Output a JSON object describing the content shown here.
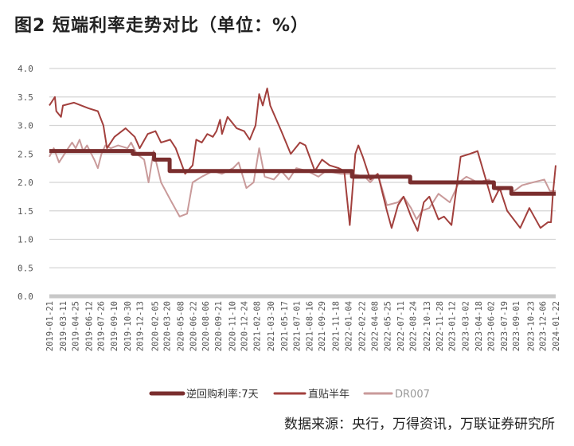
{
  "title": "图2  短端利率走势对比（单位：%）",
  "source": "数据来源：央行，万得资讯，万联证券研究所",
  "chart_data": {
    "type": "line",
    "title": "图2  短端利率走势对比（单位：%）",
    "ylabel": "",
    "xlabel": "",
    "ylim": [
      0,
      4
    ],
    "xlim": [
      "2019-01-21",
      "2024-01-22"
    ],
    "yticks": [
      "0.0",
      "0.5",
      "1.0",
      "1.5",
      "2.0",
      "2.5",
      "3.0",
      "3.5",
      "4.0"
    ],
    "grid": true,
    "legend": "bottom",
    "xticks": [
      "2019-01-21",
      "2019-03-11",
      "2019-04-25",
      "2019-06-12",
      "2019-07-26",
      "2019-09-10",
      "2019-10-30",
      "2019-12-13",
      "2020-02-05",
      "2020-03-20",
      "2020-05-08",
      "2020-06-22",
      "2020-08-06",
      "2020-09-21",
      "2020-11-10",
      "2020-12-24",
      "2021-02-08",
      "2021-03-30",
      "2021-05-17",
      "2021-07-01",
      "2021-08-16",
      "2021-09-29",
      "2021-11-18",
      "2022-01-04",
      "2022-02-22",
      "2022-04-08",
      "2022-05-25",
      "2022-07-11",
      "2022-08-24",
      "2022-10-13",
      "2022-11-28",
      "2023-01-12",
      "2023-03-02",
      "2023-04-18",
      "2023-06-02",
      "2023-07-19",
      "2023-09-01",
      "2023-10-23",
      "2023-12-06",
      "2024-01-22"
    ],
    "series": [
      {
        "name": "逆回购利率:7天",
        "color": "#7a2e2e",
        "step": true,
        "points": [
          [
            "2019-01-21",
            2.55
          ],
          [
            "2019-11-18",
            2.5
          ],
          [
            "2020-02-03",
            2.4
          ],
          [
            "2020-03-30",
            2.2
          ],
          [
            "2022-01-17",
            2.1
          ],
          [
            "2022-08-15",
            2.0
          ],
          [
            "2023-06-13",
            1.9
          ],
          [
            "2023-08-15",
            1.8
          ],
          [
            "2024-01-22",
            1.8
          ]
        ]
      },
      {
        "name": "直贴半年",
        "color": "#a2403d",
        "points": [
          [
            "2019-01-21",
            3.35
          ],
          [
            "2019-02-10",
            3.5
          ],
          [
            "2019-02-15",
            3.25
          ],
          [
            "2019-03-04",
            3.15
          ],
          [
            "2019-03-11",
            3.35
          ],
          [
            "2019-04-20",
            3.4
          ],
          [
            "2019-06-12",
            3.3
          ],
          [
            "2019-07-15",
            3.25
          ],
          [
            "2019-08-04",
            3.0
          ],
          [
            "2019-08-17",
            2.6
          ],
          [
            "2019-09-13",
            2.8
          ],
          [
            "2019-10-23",
            2.95
          ],
          [
            "2019-11-25",
            2.8
          ],
          [
            "2019-12-13",
            2.6
          ],
          [
            "2020-01-11",
            2.85
          ],
          [
            "2020-02-08",
            2.9
          ],
          [
            "2020-02-28",
            2.7
          ],
          [
            "2020-04-01",
            2.75
          ],
          [
            "2020-04-21",
            2.6
          ],
          [
            "2020-05-25",
            2.15
          ],
          [
            "2020-06-21",
            2.3
          ],
          [
            "2020-07-04",
            2.75
          ],
          [
            "2020-07-24",
            2.7
          ],
          [
            "2020-08-13",
            2.85
          ],
          [
            "2020-09-02",
            2.8
          ],
          [
            "2020-09-15",
            2.9
          ],
          [
            "2020-09-28",
            3.1
          ],
          [
            "2020-10-05",
            2.85
          ],
          [
            "2020-10-25",
            3.15
          ],
          [
            "2020-11-27",
            2.95
          ],
          [
            "2020-12-24",
            2.9
          ],
          [
            "2021-01-13",
            2.75
          ],
          [
            "2021-02-03",
            3.0
          ],
          [
            "2021-02-16",
            3.55
          ],
          [
            "2021-03-01",
            3.35
          ],
          [
            "2021-03-17",
            3.65
          ],
          [
            "2021-03-28",
            3.35
          ],
          [
            "2021-05-07",
            2.9
          ],
          [
            "2021-06-10",
            2.5
          ],
          [
            "2021-07-13",
            2.7
          ],
          [
            "2021-08-02",
            2.65
          ],
          [
            "2021-09-05",
            2.2
          ],
          [
            "2021-10-01",
            2.4
          ],
          [
            "2021-10-28",
            2.3
          ],
          [
            "2021-11-30",
            2.25
          ],
          [
            "2021-12-20",
            2.2
          ],
          [
            "2022-01-09",
            1.25
          ],
          [
            "2022-01-29",
            2.5
          ],
          [
            "2022-02-09",
            2.65
          ],
          [
            "2022-02-25",
            2.45
          ],
          [
            "2022-03-24",
            2.05
          ],
          [
            "2022-04-20",
            2.15
          ],
          [
            "2022-05-23",
            1.5
          ],
          [
            "2022-06-09",
            1.2
          ],
          [
            "2022-07-02",
            1.6
          ],
          [
            "2022-07-22",
            1.75
          ],
          [
            "2022-08-18",
            1.4
          ],
          [
            "2022-09-11",
            1.15
          ],
          [
            "2022-10-03",
            1.65
          ],
          [
            "2022-10-23",
            1.75
          ],
          [
            "2022-11-25",
            1.35
          ],
          [
            "2022-12-15",
            1.4
          ],
          [
            "2023-01-11",
            1.25
          ],
          [
            "2023-02-13",
            2.45
          ],
          [
            "2023-03-18",
            2.5
          ],
          [
            "2023-04-15",
            2.55
          ],
          [
            "2023-05-12",
            2.1
          ],
          [
            "2023-06-08",
            1.65
          ],
          [
            "2023-07-04",
            1.9
          ],
          [
            "2023-07-31",
            1.5
          ],
          [
            "2023-09-16",
            1.2
          ],
          [
            "2023-10-19",
            1.55
          ],
          [
            "2023-11-28",
            1.2
          ],
          [
            "2023-12-25",
            1.3
          ],
          [
            "2024-01-05",
            1.3
          ],
          [
            "2024-01-12",
            1.8
          ],
          [
            "2024-01-22",
            2.3
          ]
        ]
      },
      {
        "name": "DR007",
        "color": "#c99a9a",
        "points": [
          [
            "2019-01-21",
            2.45
          ],
          [
            "2019-02-06",
            2.6
          ],
          [
            "2019-02-25",
            2.35
          ],
          [
            "2019-03-30",
            2.6
          ],
          [
            "2019-04-13",
            2.7
          ],
          [
            "2019-04-26",
            2.6
          ],
          [
            "2019-05-10",
            2.75
          ],
          [
            "2019-05-23",
            2.55
          ],
          [
            "2019-06-06",
            2.65
          ],
          [
            "2019-07-02",
            2.4
          ],
          [
            "2019-07-15",
            2.25
          ],
          [
            "2019-07-28",
            2.5
          ],
          [
            "2019-08-11",
            2.65
          ],
          [
            "2019-08-31",
            2.6
          ],
          [
            "2019-09-26",
            2.65
          ],
          [
            "2019-10-30",
            2.6
          ],
          [
            "2019-11-12",
            2.7
          ],
          [
            "2019-12-02",
            2.5
          ],
          [
            "2019-12-29",
            2.4
          ],
          [
            "2020-01-14",
            2.0
          ],
          [
            "2020-02-01",
            2.55
          ],
          [
            "2020-02-28",
            2.0
          ],
          [
            "2020-04-01",
            1.7
          ],
          [
            "2020-05-05",
            1.4
          ],
          [
            "2020-06-01",
            1.45
          ],
          [
            "2020-06-21",
            2.0
          ],
          [
            "2020-07-24",
            2.1
          ],
          [
            "2020-09-02",
            2.2
          ],
          [
            "2020-10-05",
            2.15
          ],
          [
            "2020-11-14",
            2.25
          ],
          [
            "2020-12-04",
            2.35
          ],
          [
            "2021-01-01",
            1.9
          ],
          [
            "2021-01-27",
            2.0
          ],
          [
            "2021-02-16",
            2.6
          ],
          [
            "2021-03-08",
            2.1
          ],
          [
            "2021-04-10",
            2.05
          ],
          [
            "2021-05-07",
            2.2
          ],
          [
            "2021-06-03",
            2.05
          ],
          [
            "2021-06-30",
            2.25
          ],
          [
            "2021-08-09",
            2.2
          ],
          [
            "2021-09-18",
            2.1
          ],
          [
            "2021-10-15",
            2.2
          ],
          [
            "2021-12-07",
            2.15
          ],
          [
            "2022-01-16",
            2.15
          ],
          [
            "2022-03-04",
            2.1
          ],
          [
            "2022-03-24",
            2.0
          ],
          [
            "2022-04-20",
            2.15
          ],
          [
            "2022-05-23",
            1.6
          ],
          [
            "2022-07-02",
            1.65
          ],
          [
            "2022-07-22",
            1.75
          ],
          [
            "2022-08-18",
            1.55
          ],
          [
            "2022-09-07",
            1.35
          ],
          [
            "2022-09-27",
            1.5
          ],
          [
            "2022-10-23",
            1.55
          ],
          [
            "2022-11-25",
            1.8
          ],
          [
            "2023-01-05",
            1.65
          ],
          [
            "2023-02-07",
            2.0
          ],
          [
            "2023-03-06",
            2.1
          ],
          [
            "2023-04-15",
            2.0
          ],
          [
            "2023-05-26",
            2.05
          ],
          [
            "2023-06-28",
            1.85
          ],
          [
            "2023-07-31",
            1.9
          ],
          [
            "2023-08-26",
            1.85
          ],
          [
            "2023-09-23",
            1.95
          ],
          [
            "2023-11-01",
            2.0
          ],
          [
            "2023-12-12",
            2.05
          ],
          [
            "2024-01-01",
            1.85
          ],
          [
            "2024-01-22",
            1.85
          ]
        ]
      }
    ]
  }
}
